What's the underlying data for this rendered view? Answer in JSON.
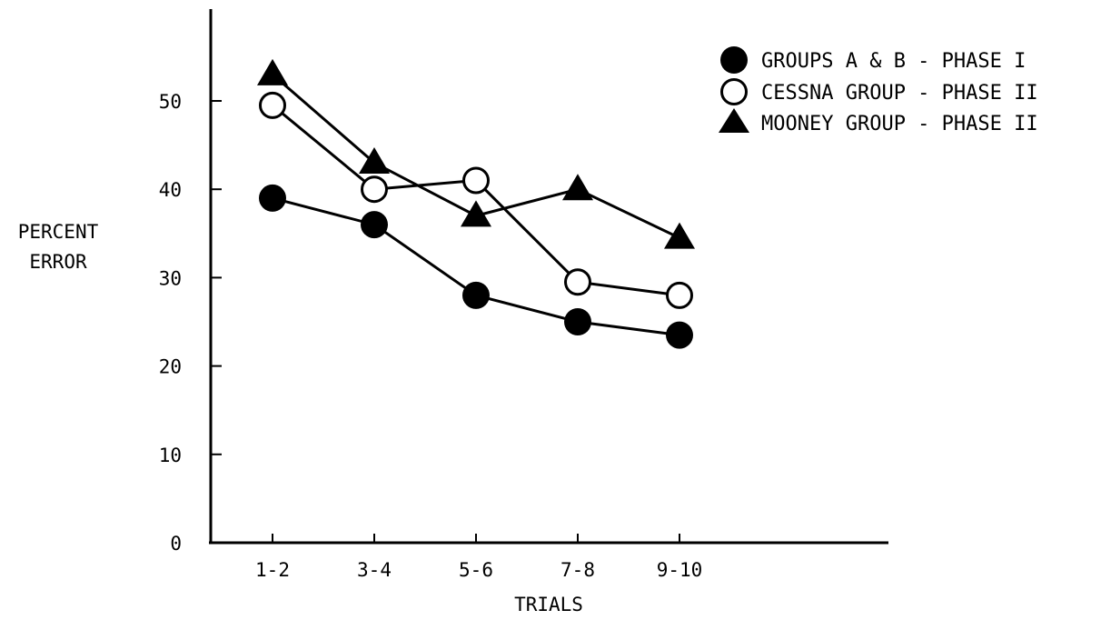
{
  "chart_data": {
    "type": "line",
    "categories": [
      "1-2",
      "3-4",
      "5-6",
      "7-8",
      "9-10"
    ],
    "xlabel": "TRIALS",
    "ylabel_lines": [
      "PERCENT",
      "ERROR"
    ],
    "ylim": [
      0,
      60
    ],
    "yticks": [
      0,
      10,
      20,
      30,
      40,
      50
    ],
    "grid": false,
    "legend_position": "top-right",
    "series": [
      {
        "name": "GROUPS A & B - PHASE I",
        "marker": "filled-circle",
        "values": [
          39,
          36,
          28,
          25,
          23.5
        ]
      },
      {
        "name": "CESSNA GROUP - PHASE II",
        "marker": "open-circle",
        "values": [
          49.5,
          40,
          41,
          29.5,
          28
        ]
      },
      {
        "name": "MOONEY GROUP - PHASE II",
        "marker": "filled-triangle",
        "values": [
          53,
          43,
          37,
          40,
          34.5
        ]
      }
    ]
  }
}
